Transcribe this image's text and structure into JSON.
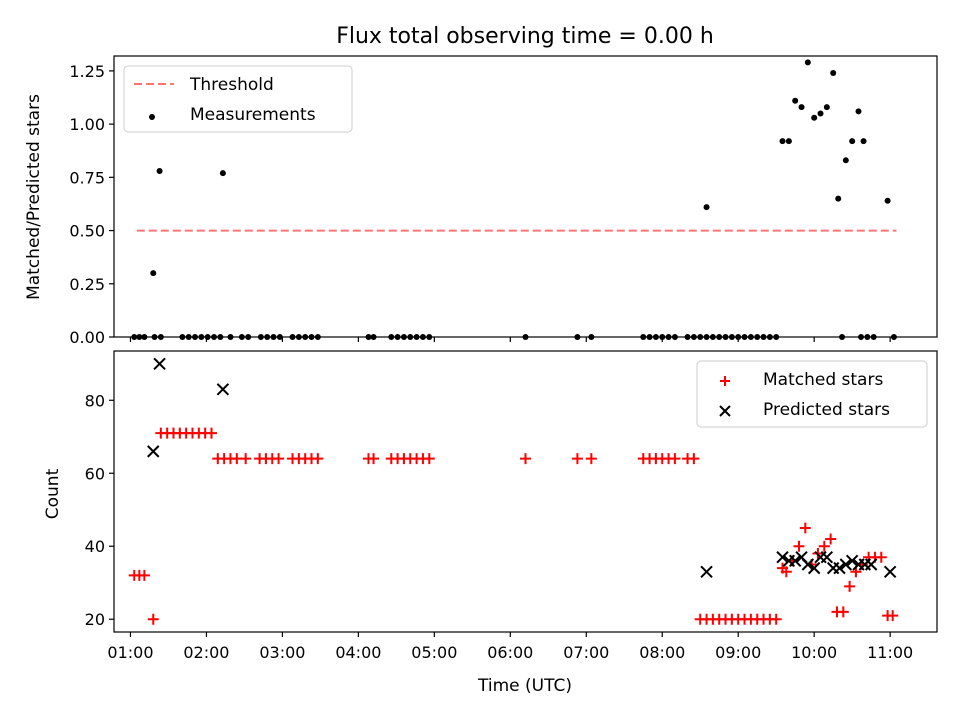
{
  "figure": {
    "title": "Flux total observing time = 0.00 h",
    "xlabel": "Time (UTC)"
  },
  "chart_data": [
    {
      "type": "scatter",
      "panel": "top",
      "ylabel": "Matched/Predicted stars",
      "xlim": [
        "00:47",
        "11:37"
      ],
      "ylim": [
        0,
        1.32
      ],
      "yticks": [
        0.0,
        0.25,
        0.5,
        0.75,
        1.0,
        1.25
      ],
      "ytick_labels": [
        "0.00",
        "0.25",
        "0.50",
        "0.75",
        "1.00",
        "1.25"
      ],
      "legend_position": "top-left",
      "series": [
        {
          "name": "Threshold",
          "kind": "line",
          "style": "dashed",
          "color": "#ff7373",
          "x": [
            "01:05",
            "11:05"
          ],
          "y": [
            0.5,
            0.5
          ]
        },
        {
          "name": "Measurements",
          "kind": "scatter",
          "marker": "dot",
          "color": "#000000",
          "x": [
            "01:03",
            "01:07",
            "01:11",
            "01:19",
            "01:24",
            "01:41",
            "01:46",
            "01:51",
            "01:56",
            "02:01",
            "02:06",
            "02:11",
            "02:19",
            "02:28",
            "02:33",
            "02:43",
            "02:48",
            "02:53",
            "02:58",
            "03:08",
            "03:13",
            "03:18",
            "03:23",
            "03:28",
            "04:08",
            "04:12",
            "04:26",
            "04:31",
            "04:36",
            "04:41",
            "04:46",
            "04:51",
            "04:56",
            "06:12",
            "06:53",
            "07:04",
            "07:45",
            "07:50",
            "07:55",
            "08:00",
            "08:05",
            "08:10",
            "08:20",
            "08:25",
            "08:30",
            "08:35",
            "08:40",
            "08:45",
            "08:50",
            "08:55",
            "09:00",
            "09:05",
            "09:10",
            "09:15",
            "09:20",
            "09:25",
            "09:30",
            "10:22",
            "10:37",
            "10:42",
            "10:47",
            "11:03",
            "01:18",
            "01:23",
            "02:13",
            "08:35",
            "09:35",
            "09:40",
            "09:45",
            "09:50",
            "09:55",
            "10:00",
            "10:05",
            "10:10",
            "10:15",
            "10:19",
            "10:25",
            "10:30",
            "10:35",
            "10:39",
            "10:58"
          ],
          "y": [
            0,
            0,
            0,
            0,
            0,
            0,
            0,
            0,
            0,
            0,
            0,
            0,
            0,
            0,
            0,
            0,
            0,
            0,
            0,
            0,
            0,
            0,
            0,
            0,
            0,
            0,
            0,
            0,
            0,
            0,
            0,
            0,
            0,
            0,
            0,
            0,
            0,
            0,
            0,
            0,
            0,
            0,
            0,
            0,
            0,
            0,
            0,
            0,
            0,
            0,
            0,
            0,
            0,
            0,
            0,
            0,
            0,
            0,
            0,
            0,
            0,
            0,
            0.3,
            0.78,
            0.77,
            0.61,
            0.92,
            0.92,
            1.11,
            1.08,
            1.29,
            1.03,
            1.05,
            1.08,
            1.24,
            0.65,
            0.83,
            0.92,
            1.06,
            0.92,
            0.64
          ]
        }
      ]
    },
    {
      "type": "scatter",
      "panel": "bottom",
      "ylabel": "Count",
      "xlabel": "Time (UTC)",
      "xlim": [
        "00:47",
        "11:37"
      ],
      "ylim": [
        16.5,
        93.5
      ],
      "yticks": [
        20,
        40,
        60,
        80
      ],
      "ytick_labels": [
        "20",
        "40",
        "60",
        "80"
      ],
      "xticks": [
        "01:00",
        "02:00",
        "03:00",
        "04:00",
        "05:00",
        "06:00",
        "07:00",
        "08:00",
        "09:00",
        "10:00",
        "11:00"
      ],
      "legend_position": "top-right",
      "series": [
        {
          "name": "Matched stars",
          "marker": "plus",
          "color": "#ff0000",
          "x": [
            "01:03",
            "01:07",
            "01:11",
            "01:18",
            "01:24",
            "01:29",
            "01:34",
            "01:39",
            "01:44",
            "01:49",
            "01:54",
            "01:59",
            "02:04",
            "02:09",
            "02:14",
            "02:19",
            "02:24",
            "02:31",
            "02:42",
            "02:47",
            "02:52",
            "02:57",
            "03:08",
            "03:13",
            "03:18",
            "03:23",
            "03:28",
            "04:08",
            "04:12",
            "04:26",
            "04:31",
            "04:36",
            "04:41",
            "04:46",
            "04:51",
            "04:56",
            "06:12",
            "06:53",
            "07:04",
            "07:45",
            "07:50",
            "07:55",
            "08:00",
            "08:05",
            "08:10",
            "08:20",
            "08:25",
            "08:30",
            "08:35",
            "08:40",
            "08:45",
            "08:50",
            "08:55",
            "09:00",
            "09:05",
            "09:10",
            "09:15",
            "09:20",
            "09:25",
            "09:30",
            "09:35",
            "09:38",
            "09:43",
            "09:48",
            "09:53",
            "09:58",
            "10:03",
            "10:08",
            "10:13",
            "10:18",
            "10:23",
            "10:28",
            "10:33",
            "10:38",
            "10:43",
            "10:48",
            "10:53",
            "10:58",
            "11:02"
          ],
          "y": [
            32,
            32,
            32,
            20,
            71,
            71,
            71,
            71,
            71,
            71,
            71,
            71,
            71,
            64,
            64,
            64,
            64,
            64,
            64,
            64,
            64,
            64,
            64,
            64,
            64,
            64,
            64,
            64,
            64,
            64,
            64,
            64,
            64,
            64,
            64,
            64,
            64,
            64,
            64,
            64,
            64,
            64,
            64,
            64,
            64,
            64,
            64,
            20,
            20,
            20,
            20,
            20,
            20,
            20,
            20,
            20,
            20,
            20,
            20,
            20,
            34,
            33,
            36,
            40,
            45,
            35,
            38,
            40,
            42,
            22,
            22,
            29,
            33,
            35,
            37,
            37,
            37,
            21,
            21
          ]
        },
        {
          "name": "Predicted stars",
          "marker": "x",
          "color": "#000000",
          "x": [
            "01:18",
            "01:23",
            "02:13",
            "08:35",
            "09:35",
            "09:40",
            "09:45",
            "09:50",
            "09:55",
            "10:00",
            "10:05",
            "10:10",
            "10:15",
            "10:20",
            "10:25",
            "10:30",
            "10:35",
            "10:40",
            "10:45",
            "11:00"
          ],
          "y": [
            66,
            90,
            83,
            33,
            37,
            36,
            36,
            37,
            35,
            34,
            37,
            37,
            34,
            34,
            35,
            36,
            35,
            35,
            35,
            33
          ]
        }
      ]
    }
  ]
}
